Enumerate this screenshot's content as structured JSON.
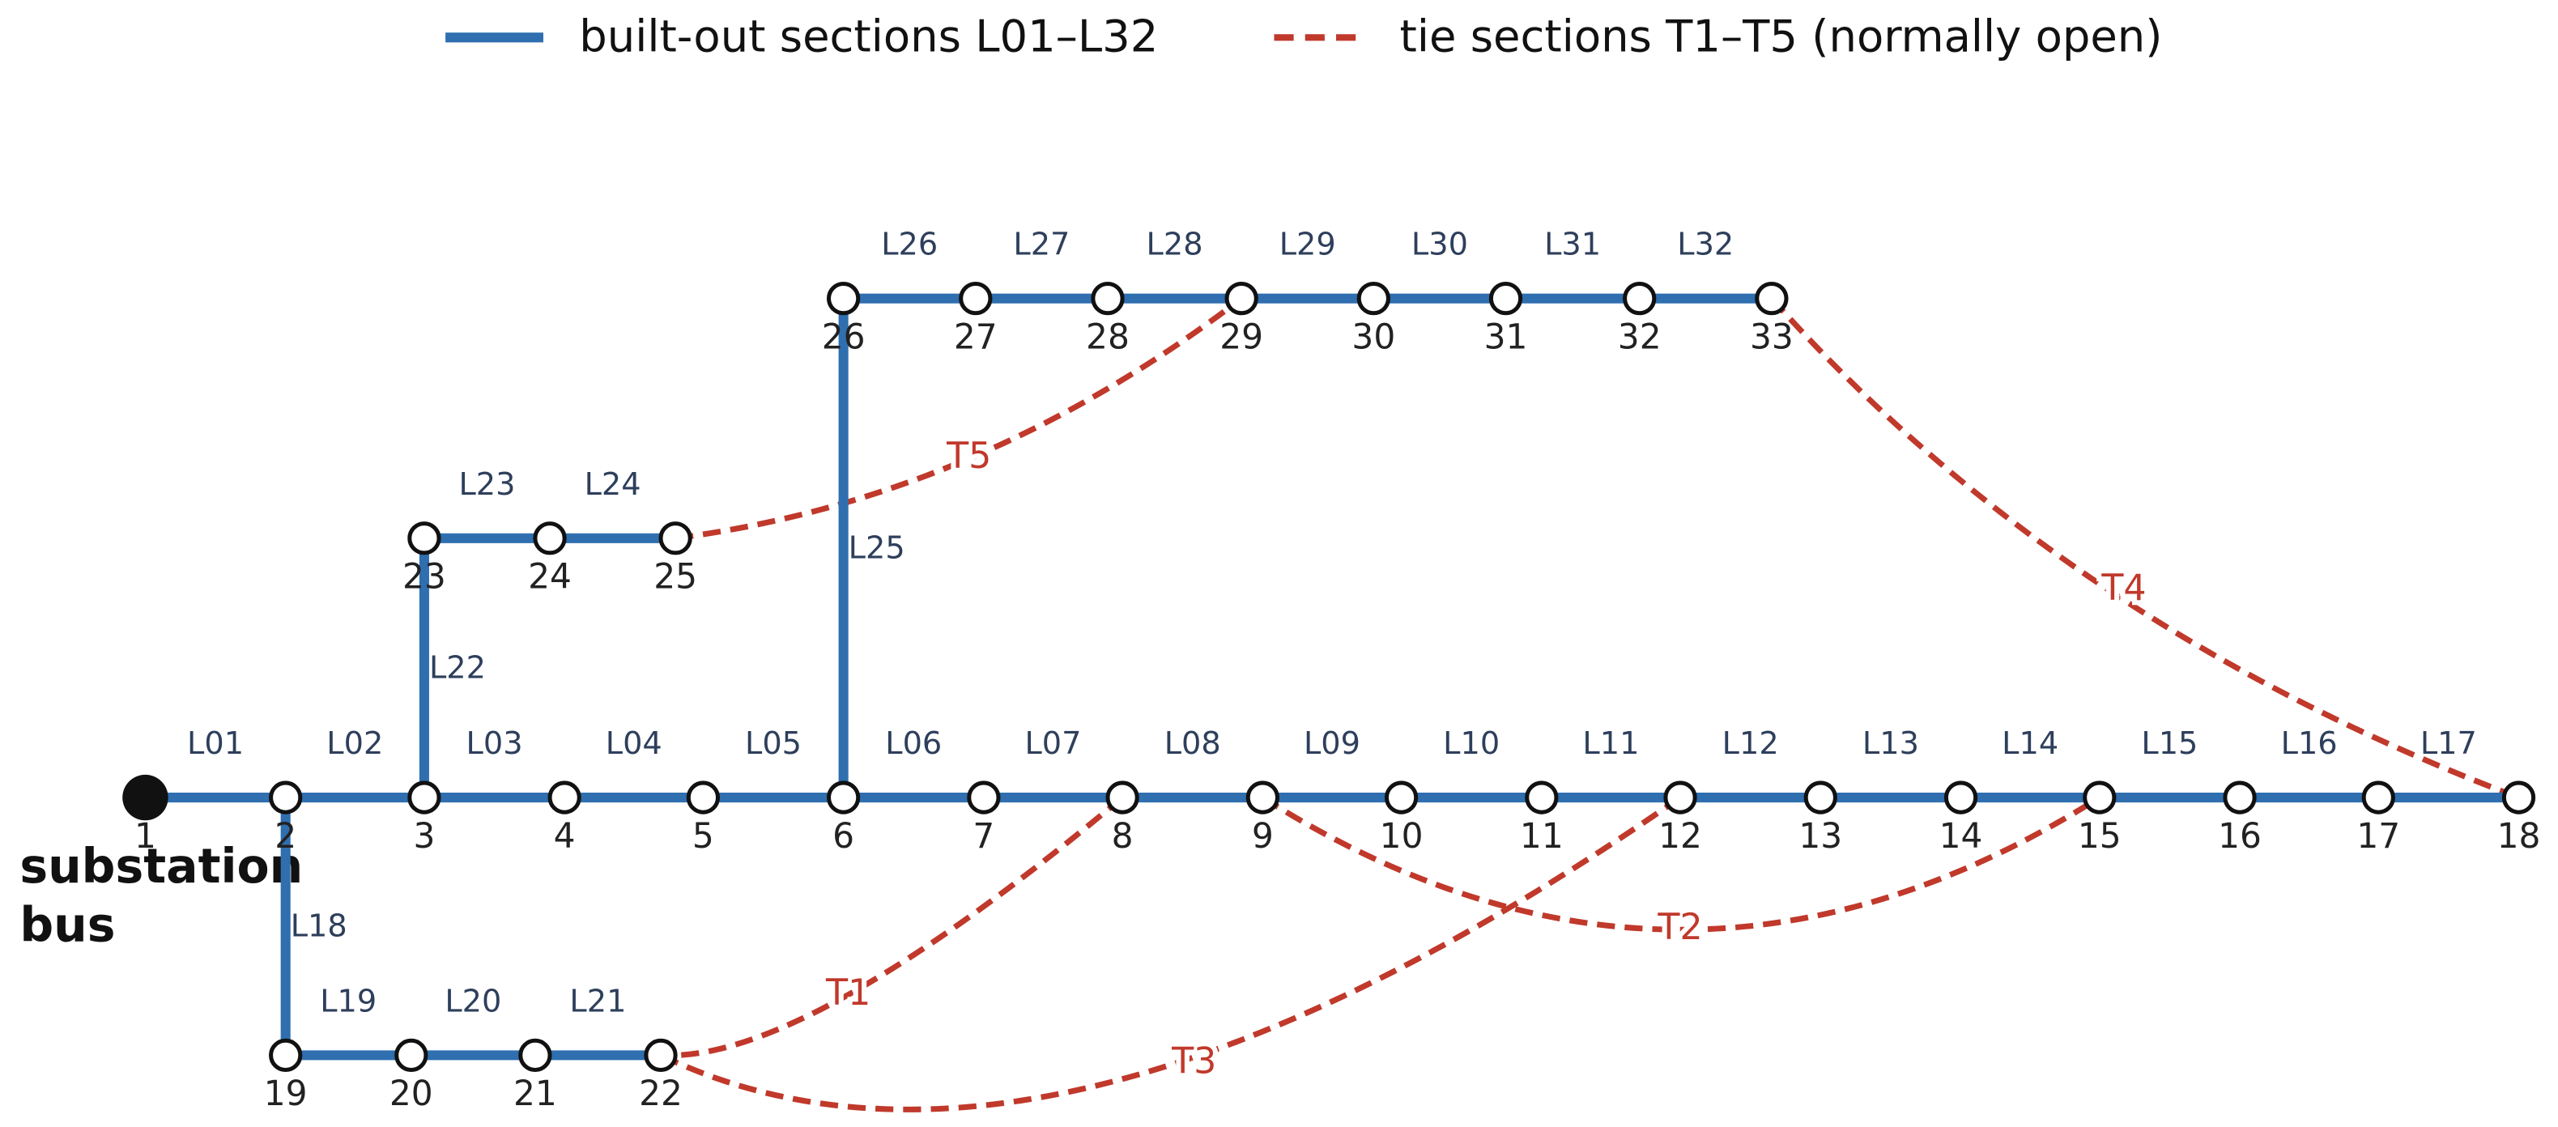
{
  "legend": {
    "built": "built-out sections L01–L32",
    "tie": "tie sections T1–T5 (normally open)"
  },
  "substation_label": [
    "substation",
    "bus"
  ],
  "nodes": [
    "1",
    "2",
    "3",
    "4",
    "5",
    "6",
    "7",
    "8",
    "9",
    "10",
    "11",
    "12",
    "13",
    "14",
    "15",
    "16",
    "17",
    "18",
    "19",
    "20",
    "21",
    "22",
    "23",
    "24",
    "25",
    "26",
    "27",
    "28",
    "29",
    "30",
    "31",
    "32",
    "33"
  ],
  "edges": [
    "L01",
    "L02",
    "L03",
    "L04",
    "L05",
    "L06",
    "L07",
    "L08",
    "L09",
    "L10",
    "L11",
    "L12",
    "L13",
    "L14",
    "L15",
    "L16",
    "L17",
    "L18",
    "L19",
    "L20",
    "L21",
    "L22",
    "L23",
    "L24",
    "L25",
    "L26",
    "L27",
    "L28",
    "L29",
    "L30",
    "L31",
    "L32"
  ],
  "ties": [
    "T1",
    "T2",
    "T3",
    "T4",
    "T5"
  ]
}
